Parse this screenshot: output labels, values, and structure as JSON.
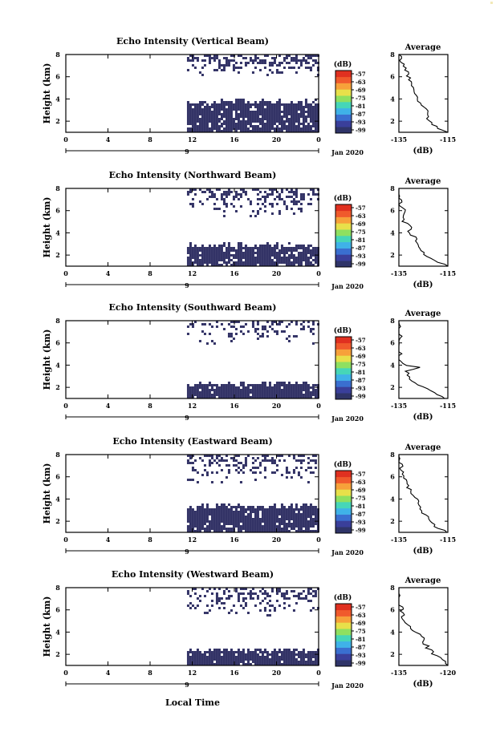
{
  "figure": {
    "xlabel_bottom": "Local Time",
    "date_label": "Jan 2020",
    "x_ticks": [
      "0",
      "4",
      "8",
      "12",
      "16",
      "20",
      "0"
    ],
    "day_tick": "9",
    "colorbar_unit": "(dB)",
    "colorbar_ticks": [
      "-57",
      "-63",
      "-69",
      "-75",
      "-81",
      "-87",
      "-93",
      "-99"
    ],
    "colorbar_colors": [
      "#2f3468",
      "#3a3f9a",
      "#3a6fd0",
      "#3fb2e8",
      "#46d6b8",
      "#8fe060",
      "#e8e04a",
      "#f7a13a",
      "#f05a2c",
      "#e03020"
    ],
    "cell_color": "#333366",
    "avg_title": "Average",
    "avg_xlabel": "(dB)"
  },
  "chart_data": [
    {
      "type": "heatmap",
      "title": "Echo Intensity (Vertical Beam)",
      "ylabel": "Height (km)",
      "y_ticks": [
        "8",
        "6",
        "4",
        "2"
      ],
      "ylim": [
        1,
        8
      ],
      "xlim_hours": [
        0,
        24
      ],
      "data_start_hour": 11.5,
      "lower_layer_km": [
        1,
        3.9
      ],
      "upper_layer_km": [
        6.1,
        8
      ],
      "fill_density_lower": 0.9,
      "fill_density_upper": 0.45,
      "average_profile": {
        "xlim": [
          -135,
          -115
        ],
        "x_ticks": [
          "-135",
          "-115"
        ],
        "heights_km": [
          1,
          1.5,
          2,
          2.5,
          3,
          3.5,
          4,
          4.5,
          5,
          5.5,
          6,
          6.5,
          7,
          7.5,
          8
        ],
        "values_db": [
          -115,
          -120,
          -122,
          -124,
          -123,
          -126,
          -127,
          -128,
          -129,
          -130,
          -131,
          -132,
          -133,
          -134,
          -135
        ]
      }
    },
    {
      "type": "heatmap",
      "title": "Echo Intensity (Northward Beam)",
      "ylabel": "Height (km)",
      "y_ticks": [
        "8",
        "6",
        "4",
        "2"
      ],
      "ylim": [
        1,
        8
      ],
      "xlim_hours": [
        0,
        24
      ],
      "data_start_hour": 11.5,
      "lower_layer_km": [
        1,
        3.0
      ],
      "upper_layer_km": [
        5.5,
        8
      ],
      "fill_density_lower": 0.9,
      "fill_density_upper": 0.4,
      "average_profile": {
        "xlim": [
          -135,
          -115
        ],
        "x_ticks": [
          "-135",
          "-115"
        ],
        "heights_km": [
          1,
          1.5,
          2,
          2.5,
          3,
          3.5,
          4,
          4.5,
          5,
          5.5,
          6,
          6.5,
          7,
          7.5,
          8
        ],
        "values_db": [
          -115,
          -120,
          -124,
          -126,
          -127,
          -128,
          -131,
          -130,
          -133,
          -134,
          -132,
          -135,
          -134,
          -136,
          -135
        ]
      }
    },
    {
      "type": "heatmap",
      "title": "Echo Intensity (Southward Beam)",
      "ylabel": "Height (km)",
      "y_ticks": [
        "8",
        "6",
        "4",
        "2"
      ],
      "ylim": [
        1,
        8
      ],
      "xlim_hours": [
        0,
        24
      ],
      "data_start_hour": 11.5,
      "lower_layer_km": [
        1,
        2.5
      ],
      "upper_layer_km": [
        6.0,
        8
      ],
      "fill_density_lower": 0.95,
      "fill_density_upper": 0.3,
      "average_profile": {
        "xlim": [
          -135,
          -115
        ],
        "x_ticks": [
          "-135",
          "-115"
        ],
        "heights_km": [
          1,
          1.5,
          2,
          2.5,
          3,
          3.5,
          3.8,
          4,
          4.5,
          5,
          5.5,
          6,
          6.5,
          7,
          7.5,
          8
        ],
        "values_db": [
          -116,
          -121,
          -125,
          -129,
          -131,
          -132,
          -127,
          -133,
          -135,
          -134,
          -136,
          -135,
          -134,
          -136,
          -135,
          -136
        ]
      }
    },
    {
      "type": "heatmap",
      "title": "Echo Intensity (Eastward Beam)",
      "ylabel": "Height (km)",
      "y_ticks": [
        "8",
        "6",
        "4",
        "2"
      ],
      "ylim": [
        1,
        8
      ],
      "xlim_hours": [
        0,
        24
      ],
      "data_start_hour": 11.5,
      "lower_layer_km": [
        1,
        3.5
      ],
      "upper_layer_km": [
        5.5,
        8
      ],
      "fill_density_lower": 0.9,
      "fill_density_upper": 0.35,
      "average_profile": {
        "xlim": [
          -135,
          -115
        ],
        "x_ticks": [
          "-135",
          "-115"
        ],
        "heights_km": [
          1,
          1.5,
          2,
          2.5,
          3,
          3.5,
          4,
          4.5,
          5,
          5.5,
          6,
          6.5,
          7,
          7.5,
          8
        ],
        "values_db": [
          -115,
          -120,
          -122,
          -124,
          -126,
          -127,
          -128,
          -130,
          -131,
          -132,
          -133,
          -134,
          -134,
          -135,
          -136
        ]
      }
    },
    {
      "type": "heatmap",
      "title": "Echo Intensity (Westward Beam)",
      "ylabel": "Height (km)",
      "y_ticks": [
        "8",
        "6",
        "4",
        "2"
      ],
      "ylim": [
        1,
        8
      ],
      "xlim_hours": [
        0,
        24
      ],
      "data_start_hour": 11.5,
      "lower_layer_km": [
        1,
        2.5
      ],
      "upper_layer_km": [
        5.5,
        8
      ],
      "fill_density_lower": 0.95,
      "fill_density_upper": 0.35,
      "average_profile": {
        "xlim": [
          -135,
          -120
        ],
        "x_ticks": [
          "-135",
          "-120"
        ],
        "heights_km": [
          1,
          1.5,
          2,
          2.5,
          3,
          3.5,
          4,
          4.5,
          5,
          5.5,
          6,
          6.5,
          7,
          7.5,
          8
        ],
        "values_db": [
          -119,
          -122,
          -124,
          -126,
          -127,
          -128,
          -130,
          -131,
          -133,
          -134,
          -134,
          -135,
          -136,
          -135,
          -136
        ]
      }
    }
  ]
}
